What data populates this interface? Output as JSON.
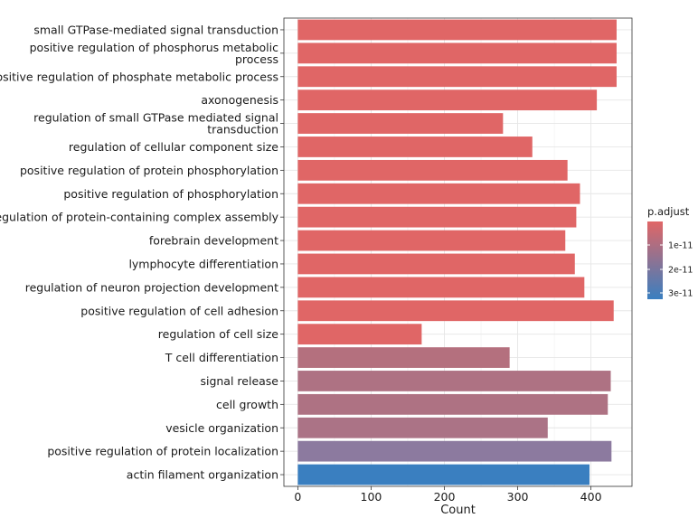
{
  "chart_data": {
    "type": "bar",
    "orientation": "horizontal",
    "categories": [
      [
        "small GTPase-mediated signal transduction"
      ],
      [
        "positive regulation of phosphorus metabolic",
        "process"
      ],
      [
        "positive regulation of phosphate metabolic process"
      ],
      [
        "axonogenesis"
      ],
      [
        "regulation of small GTPase mediated signal",
        "transduction"
      ],
      [
        "regulation of cellular component size"
      ],
      [
        "positive regulation of protein phosphorylation"
      ],
      [
        "positive regulation of phosphorylation"
      ],
      [
        "regulation of protein-containing complex assembly"
      ],
      [
        "forebrain development"
      ],
      [
        "lymphocyte differentiation"
      ],
      [
        "regulation of neuron projection development"
      ],
      [
        "positive regulation of cell adhesion"
      ],
      [
        "regulation of cell size"
      ],
      [
        "T cell differentiation"
      ],
      [
        "signal release"
      ],
      [
        "cell growth"
      ],
      [
        "vesicle organization"
      ],
      [
        "positive regulation of protein localization"
      ],
      [
        "actin filament organization"
      ]
    ],
    "values": [
      435,
      435,
      435,
      408,
      280,
      320,
      368,
      385,
      380,
      365,
      378,
      391,
      431,
      169,
      289,
      427,
      423,
      341,
      428,
      398
    ],
    "bar_colors": [
      "#E06666",
      "#E06666",
      "#E06666",
      "#E06666",
      "#E06666",
      "#E06666",
      "#E06666",
      "#E06666",
      "#E06666",
      "#E06666",
      "#E06666",
      "#E06666",
      "#E06666",
      "#E06666",
      "#B4707E",
      "#AE7283",
      "#AE7283",
      "#AB7386",
      "#8C7A9F",
      "#3A7FC0"
    ],
    "xlabel": "Count",
    "ylabel": "",
    "x_ticks": [
      0,
      100,
      200,
      300,
      400
    ],
    "xlim": [
      -19,
      456
    ],
    "legend": {
      "title": "p.adjust",
      "ticks": [
        "1e-11",
        "2e-11",
        "3e-11"
      ],
      "color_low": "#E06666",
      "color_high": "#3A7FC0",
      "position": "right"
    }
  }
}
